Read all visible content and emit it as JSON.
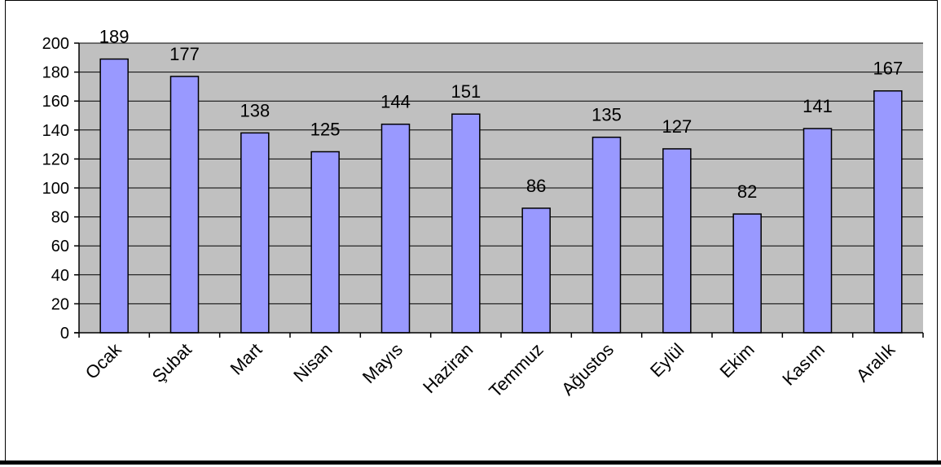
{
  "chart_data": {
    "type": "bar",
    "categories": [
      "Ocak",
      "Şubat",
      "Mart",
      "Nisan",
      "Mayıs",
      "Haziran",
      "Temmuz",
      "Ağustos",
      "Eylül",
      "Ekim",
      "Kasım",
      "Aralık"
    ],
    "values": [
      189,
      177,
      138,
      125,
      144,
      151,
      86,
      135,
      127,
      82,
      141,
      167
    ],
    "ylim": [
      0,
      200
    ],
    "yticks": [
      0,
      20,
      40,
      60,
      80,
      100,
      120,
      140,
      160,
      180,
      200
    ],
    "grid": true,
    "legend": "none",
    "colors": {
      "bar_fill": "#9999ff",
      "bar_stroke": "#000000",
      "plot_background": "#c0c0c0",
      "gridline": "#000000"
    }
  }
}
